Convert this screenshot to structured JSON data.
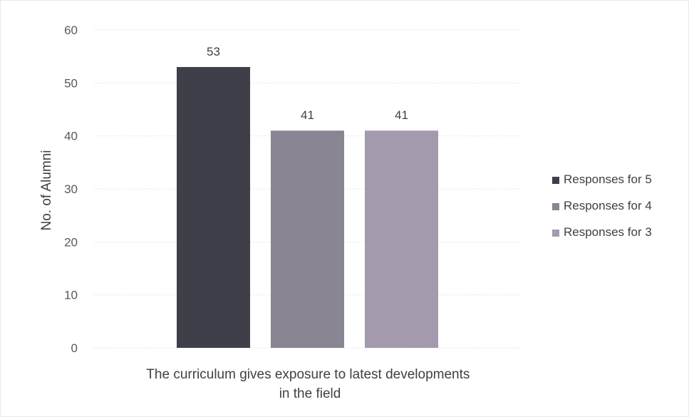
{
  "chart_data": {
    "type": "bar",
    "title": "",
    "ylabel": "No. of Alumni",
    "xlabel": "",
    "ylim": [
      0,
      60
    ],
    "yticks": [
      0,
      10,
      20,
      30,
      40,
      50,
      60
    ],
    "grid": true,
    "legend_position": "right",
    "categories": [
      "The curriculum gives exposure to latest developments in the field"
    ],
    "category_label_lines": [
      "The curriculum gives exposure to latest developments",
      "in the field"
    ],
    "series": [
      {
        "name": "Responses for 5",
        "values": [
          53
        ],
        "color": "#3f3f4a"
      },
      {
        "name": "Responses for 4",
        "values": [
          41
        ],
        "color": "#8a8592"
      },
      {
        "name": "Responses for 3",
        "values": [
          41
        ],
        "color": "#a49aae"
      }
    ],
    "data_labels": [
      "53",
      "41",
      "41"
    ]
  }
}
